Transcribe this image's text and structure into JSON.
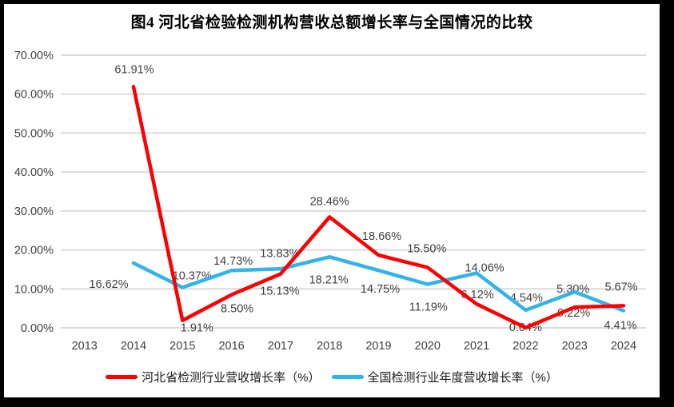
{
  "window": {
    "surround_color": "#000000",
    "panel_background": "#ffffff"
  },
  "chart_data": {
    "type": "line",
    "title": "图4 河北省检验检测机构营收总额增长率与全国情况的比较",
    "x_categories": [
      "2013",
      "2014",
      "2015",
      "2016",
      "2017",
      "2018",
      "2019",
      "2020",
      "2021",
      "2022",
      "2023",
      "2024"
    ],
    "ylim": [
      0,
      70
    ],
    "ytick_labels": [
      "0.00%",
      "10.00%",
      "20.00%",
      "30.00%",
      "40.00%",
      "50.00%",
      "60.00%",
      "70.00%"
    ],
    "grid": true,
    "legend_position": "bottom-center",
    "colors": {
      "grid": "#dbdbdb",
      "tick_text": "#404040",
      "label_text": "#3f3f3f"
    },
    "series": [
      {
        "name": "河北省检测行业营收增长率（%）",
        "color": "#ff0000",
        "start_index": 1,
        "values": [
          61.91,
          1.91,
          8.5,
          13.83,
          28.46,
          18.66,
          15.5,
          6.12,
          0.04,
          5.3,
          5.67
        ],
        "point_labels": [
          "61.91%",
          "1.91%",
          "8.50%",
          "13.83%",
          "28.46%",
          "18.66%",
          "15.50%",
          "6.12%",
          "0.04%",
          "5.30%",
          "5.67%"
        ],
        "label_offsets": [
          [
            1,
            -22
          ],
          [
            18,
            9
          ],
          [
            7,
            17
          ],
          [
            -1,
            -26
          ],
          [
            0,
            -20
          ],
          [
            4,
            -24
          ],
          [
            -1,
            -24
          ],
          [
            1,
            -12
          ],
          [
            0,
            -1
          ],
          [
            -2,
            -23
          ],
          [
            -3,
            -24
          ]
        ]
      },
      {
        "name": "全国检测行业年度营收增长率（%）",
        "color": "#30b4e9",
        "start_index": 1,
        "values": [
          16.62,
          10.37,
          14.73,
          15.13,
          18.21,
          14.75,
          11.19,
          14.06,
          4.54,
          9.22,
          4.41
        ],
        "point_labels": [
          "16.62%",
          "10.37%",
          "14.73%",
          "15.13%",
          "18.21%",
          "14.75%",
          "11.19%",
          "14.06%",
          "4.54%",
          "9.22%",
          "4.41%"
        ],
        "label_offsets": [
          [
            -31,
            26
          ],
          [
            12,
            -15
          ],
          [
            2,
            -12
          ],
          [
            -1,
            27
          ],
          [
            -1,
            28
          ],
          [
            2,
            23
          ],
          [
            1,
            28
          ],
          [
            10,
            -7
          ],
          [
            1,
            -16
          ],
          [
            -1,
            26
          ],
          [
            -4,
            18
          ]
        ]
      }
    ]
  }
}
